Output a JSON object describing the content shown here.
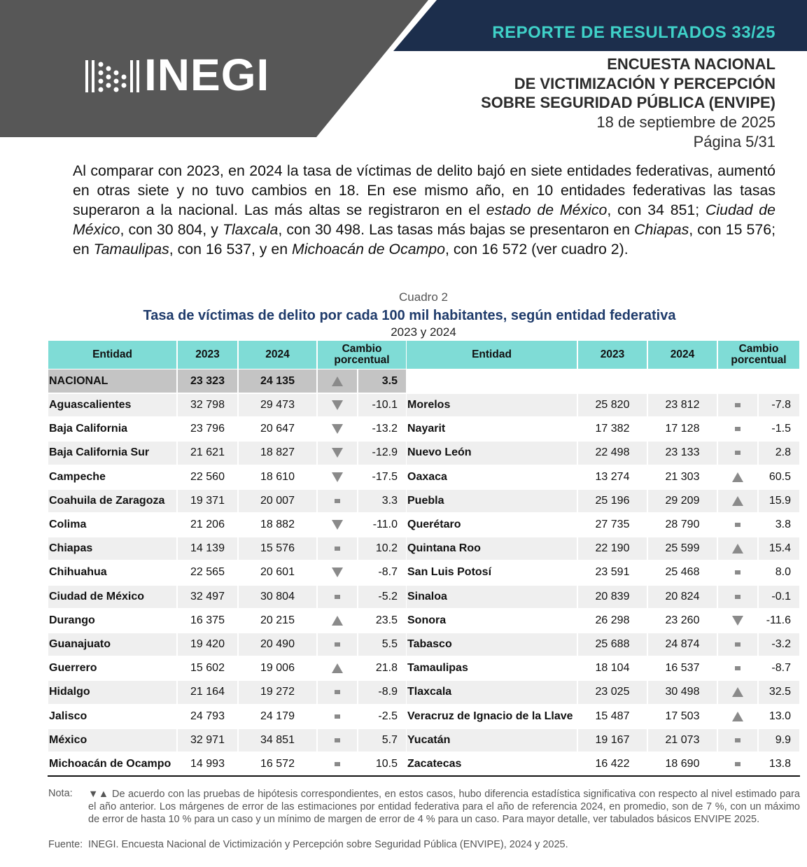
{
  "header": {
    "report": "REPORTE DE RESULTADOS 33/25",
    "logo": "INEGI",
    "survey": [
      "ENCUESTA NACIONAL",
      "DE VICTIMIZACIÓN Y PERCEPCIÓN",
      "SOBRE SEGURIDAD PÚBLICA (ENVIPE)"
    ],
    "date": "18 de septiembre de 2025",
    "page": "Página 5/31"
  },
  "paragraph": {
    "parts": [
      {
        "text": "Al comparar con 2023, en 2024 la tasa de víctimas de delito bajó en siete entidades federativas, aumentó en otras siete y no tuvo cambios en 18. En ese mismo año, en 10 entidades federativas las tasas superaron a la nacional. Las más altas se registraron en el ",
        "italic": false
      },
      {
        "text": "estado de México",
        "italic": true
      },
      {
        "text": ", con 34 851; ",
        "italic": false
      },
      {
        "text": "Ciudad de México",
        "italic": true
      },
      {
        "text": ", con 30 804, y ",
        "italic": false
      },
      {
        "text": "Tlaxcala",
        "italic": true
      },
      {
        "text": ", con 30 498. Las tasas más bajas se presentaron en ",
        "italic": false
      },
      {
        "text": "Chiapas",
        "italic": true
      },
      {
        "text": ", con 15 576; en ",
        "italic": false
      },
      {
        "text": "Tamaulipas",
        "italic": true
      },
      {
        "text": ", con 16 537, y en ",
        "italic": false
      },
      {
        "text": "Michoacán de Ocampo",
        "italic": true
      },
      {
        "text": ", con 16 572 (ver cuadro 2).",
        "italic": false
      }
    ]
  },
  "table": {
    "caption": "Cuadro 2",
    "title": "Tasa de víctimas de delito por cada 100 mil habitantes, según entidad federativa",
    "subtitle": "2023 y 2024",
    "headers": [
      "Entidad",
      "2023",
      "2024",
      "Cambio porcentual"
    ],
    "national": [
      "NACIONAL",
      "23 323",
      "24 135",
      "up",
      "3.5"
    ],
    "left_rows": [
      [
        "Aguascalientes",
        "32 798",
        "29 473",
        "down",
        "-10.1"
      ],
      [
        "Baja California",
        "23 796",
        "20 647",
        "down",
        "-13.2"
      ],
      [
        "Baja California Sur",
        "21 621",
        "18 827",
        "down",
        "-12.9"
      ],
      [
        "Campeche",
        "22 560",
        "18 610",
        "down",
        "-17.5"
      ],
      [
        "Coahuila de Zaragoza",
        "19 371",
        "20 007",
        "same",
        "3.3"
      ],
      [
        "Colima",
        "21 206",
        "18 882",
        "down",
        "-11.0"
      ],
      [
        "Chiapas",
        "14 139",
        "15 576",
        "same",
        "10.2"
      ],
      [
        "Chihuahua",
        "22 565",
        "20 601",
        "down",
        "-8.7"
      ],
      [
        "Ciudad de México",
        "32 497",
        "30 804",
        "same",
        "-5.2"
      ],
      [
        "Durango",
        "16 375",
        "20 215",
        "up",
        "23.5"
      ],
      [
        "Guanajuato",
        "19 420",
        "20 490",
        "same",
        "5.5"
      ],
      [
        "Guerrero",
        "15 602",
        "19 006",
        "up",
        "21.8"
      ],
      [
        "Hidalgo",
        "21 164",
        "19 272",
        "same",
        "-8.9"
      ],
      [
        "Jalisco",
        "24 793",
        "24 179",
        "same",
        "-2.5"
      ],
      [
        "México",
        "32 971",
        "34 851",
        "same",
        "5.7"
      ],
      [
        "Michoacán de Ocampo",
        "14 993",
        "16 572",
        "same",
        "10.5"
      ]
    ],
    "right_rows": [
      [
        "Morelos",
        "25 820",
        "23 812",
        "same",
        "-7.8"
      ],
      [
        "Nayarit",
        "17 382",
        "17 128",
        "same",
        "-1.5"
      ],
      [
        "Nuevo León",
        "22 498",
        "23 133",
        "same",
        "2.8"
      ],
      [
        "Oaxaca",
        "13 274",
        "21 303",
        "up",
        "60.5"
      ],
      [
        "Puebla",
        "25 196",
        "29 209",
        "up",
        "15.9"
      ],
      [
        "Querétaro",
        "27 735",
        "28 790",
        "same",
        "3.8"
      ],
      [
        "Quintana Roo",
        "22 190",
        "25 599",
        "up",
        "15.4"
      ],
      [
        "San Luis Potosí",
        "23 591",
        "25 468",
        "same",
        "8.0"
      ],
      [
        "Sinaloa",
        "20 839",
        "20 824",
        "same",
        "-0.1"
      ],
      [
        "Sonora",
        "26 298",
        "23 260",
        "down",
        "-11.6"
      ],
      [
        "Tabasco",
        "25 688",
        "24 874",
        "same",
        "-3.2"
      ],
      [
        "Tamaulipas",
        "18 104",
        "16 537",
        "same",
        "-8.7"
      ],
      [
        "Tlaxcala",
        "23 025",
        "30 498",
        "up",
        "32.5"
      ],
      [
        "Veracruz de Ignacio de la Llave",
        "15 487",
        "17 503",
        "up",
        "13.0"
      ],
      [
        "Yucatán",
        "19 167",
        "21 073",
        "same",
        "9.9"
      ],
      [
        "Zacatecas",
        "16 422",
        "18 690",
        "same",
        "13.8"
      ]
    ]
  },
  "notes": {
    "note_label": "Nota:",
    "note": "▼▲ De acuerdo con las pruebas de hipótesis correspondientes, en estos casos, hubo diferencia estadística significativa con respecto al nivel estimado para el año anterior. Los márgenes de error de las estimaciones por entidad federativa para el año de referencia 2024, en promedio, son de 7 %, con un máximo de error de hasta 10 % para un caso y un mínimo de margen de error de 4 % para un caso. Para mayor detalle, ver tabulados básicos ENVIPE 2025.",
    "source_label": "Fuente:",
    "source": "INEGI. Encuesta Nacional de Victimización y Percepción sobre Seguridad Pública (ENVIPE), 2024 y 2025."
  }
}
